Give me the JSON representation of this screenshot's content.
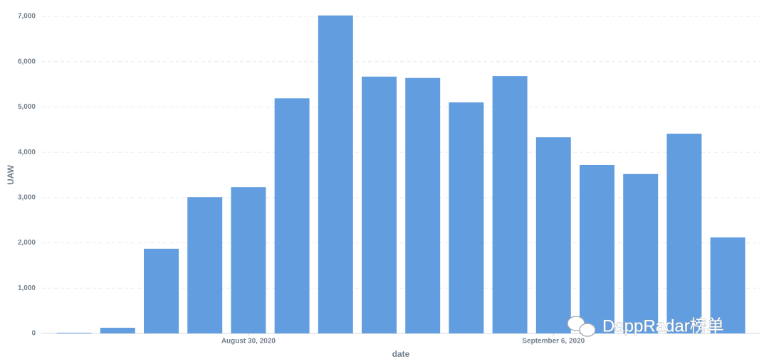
{
  "chart_data": {
    "type": "bar",
    "x_label": "date",
    "y_label": "UAW",
    "categories": [
      null,
      null,
      null,
      null,
      "August 30, 2020",
      null,
      null,
      null,
      null,
      null,
      null,
      "September 6, 2020",
      null,
      null,
      null,
      null
    ],
    "values": [
      15,
      125,
      1870,
      3010,
      3230,
      5190,
      7020,
      5670,
      5640,
      5100,
      5680,
      4330,
      3720,
      3520,
      4410,
      2120
    ],
    "color": "#629ddf",
    "ylim": [
      0,
      7000
    ],
    "yticks": [
      0,
      {
        "value": 1000,
        "label": "1,000"
      },
      {
        "value": 2000,
        "label": "2,000"
      },
      {
        "value": 3000,
        "label": "3,000"
      },
      {
        "value": 4000,
        "label": "4,000"
      },
      {
        "value": 5000,
        "label": "5,000"
      },
      {
        "value": 6000,
        "label": "6,000"
      },
      {
        "value": 7000,
        "label": "7,000"
      }
    ],
    "grid": true,
    "watermark": "DappRadar榜单"
  }
}
